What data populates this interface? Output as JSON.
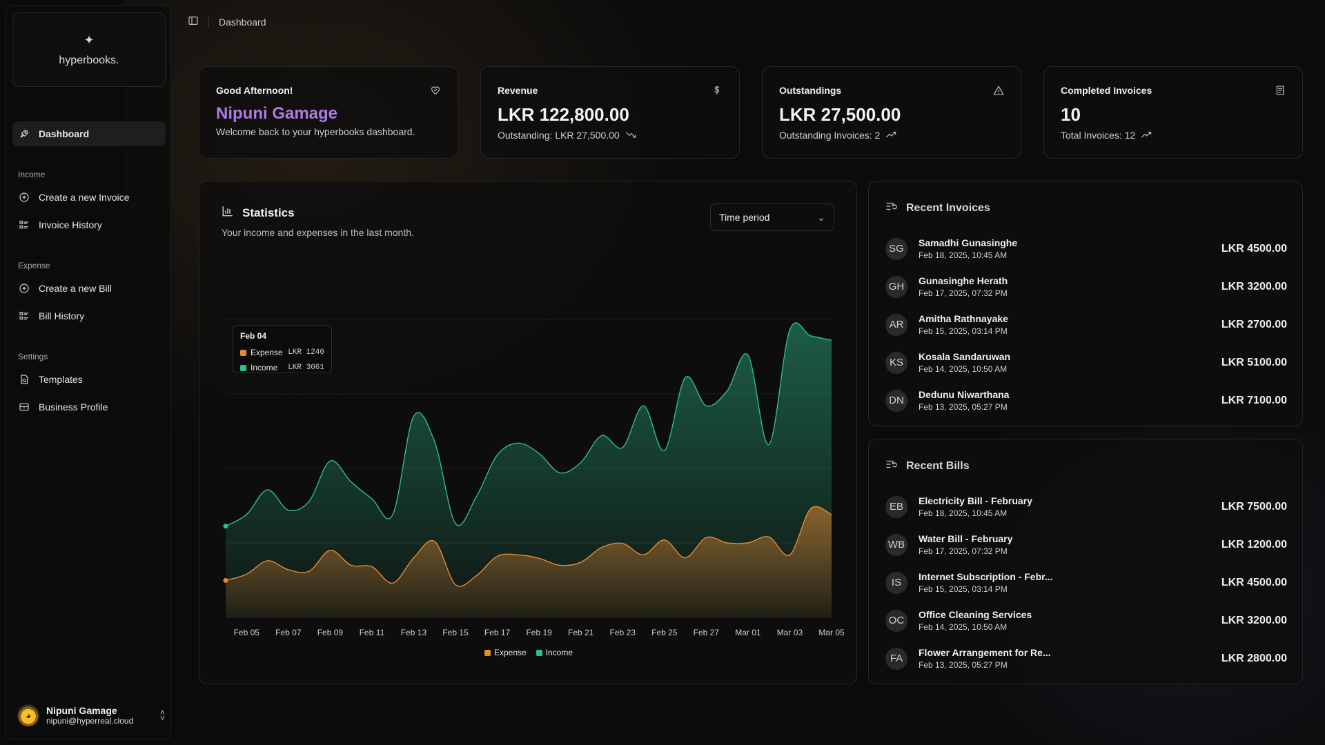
{
  "brand": {
    "name": "hyperbooks."
  },
  "breadcrumb": {
    "current": "Dashboard"
  },
  "sidebar": {
    "dashboard": "Dashboard",
    "income_label": "Income",
    "create_invoice": "Create a new Invoice",
    "invoice_history": "Invoice History",
    "expense_label": "Expense",
    "create_bill": "Create a new Bill",
    "bill_history": "Bill History",
    "settings_label": "Settings",
    "templates": "Templates",
    "business_profile": "Business Profile"
  },
  "user": {
    "name": "Nipuni Gamage",
    "email": "nipuni@hyperreal.cloud"
  },
  "cards": {
    "greeting": {
      "title": "Good Afternoon!",
      "name": "Nipuni Gamage",
      "sub": "Welcome back to your hyperbooks dashboard."
    },
    "revenue": {
      "title": "Revenue",
      "value": "LKR 122,800.00",
      "sub": "Outstanding: LKR 27,500.00"
    },
    "outstandings": {
      "title": "Outstandings",
      "value": "LKR 27,500.00",
      "sub": "Outstanding Invoices:  2"
    },
    "completed": {
      "title": "Completed Invoices",
      "value": "10",
      "sub": "Total Invoices:  12"
    }
  },
  "statistics": {
    "title": "Statistics",
    "subtitle": "Your income and expenses in the last month.",
    "select_value": "Time period",
    "tooltip": {
      "date": "Feb 04",
      "expense_label": "Expense",
      "expense_value": "LKR 1240",
      "income_label": "Income",
      "income_value": "LKR 3061"
    }
  },
  "chart_data": {
    "type": "area",
    "x": [
      "Feb 04",
      "Feb 05",
      "Feb 06",
      "Feb 07",
      "Feb 08",
      "Feb 09",
      "Feb 10",
      "Feb 11",
      "Feb 12",
      "Feb 13",
      "Feb 14",
      "Feb 15",
      "Feb 16",
      "Feb 17",
      "Feb 18",
      "Feb 19",
      "Feb 20",
      "Feb 21",
      "Feb 22",
      "Feb 23",
      "Feb 24",
      "Feb 25",
      "Feb 26",
      "Feb 27",
      "Feb 28",
      "Mar 01",
      "Mar 02",
      "Mar 03",
      "Mar 04",
      "Mar 05"
    ],
    "tick_labels": [
      "Feb 05",
      "Feb 07",
      "Feb 09",
      "Feb 11",
      "Feb 13",
      "Feb 15",
      "Feb 17",
      "Feb 19",
      "Feb 21",
      "Feb 23",
      "Feb 25",
      "Feb 27",
      "Mar 01",
      "Mar 03",
      "Mar 05"
    ],
    "series": [
      {
        "name": "Income",
        "color": "#2fbf8a",
        "values": [
          3061,
          3450,
          4280,
          3600,
          3900,
          5250,
          4550,
          3980,
          3450,
          6750,
          5900,
          3150,
          4050,
          5450,
          5850,
          5500,
          4850,
          5200,
          6100,
          5700,
          7100,
          5600,
          8050,
          7100,
          7600,
          8800,
          5800,
          9650,
          9450,
          9300
        ]
      },
      {
        "name": "Expense",
        "color": "#e88a32",
        "values": [
          1240,
          1450,
          1900,
          1600,
          1550,
          2250,
          1750,
          1700,
          1150,
          2000,
          2550,
          1100,
          1400,
          2050,
          2100,
          1980,
          1750,
          1850,
          2350,
          2480,
          2100,
          2600,
          2000,
          2680,
          2500,
          2500,
          2700,
          2100,
          3650,
          3450
        ]
      }
    ],
    "ylim": [
      0,
      10000
    ],
    "legend": [
      "Expense",
      "Income"
    ]
  },
  "recent_invoices": {
    "title": "Recent Invoices",
    "items": [
      {
        "initials": "SG",
        "name": "Samadhi Gunasinghe",
        "date": "Feb 18, 2025, 10:45 AM",
        "amount": "LKR 4500.00"
      },
      {
        "initials": "GH",
        "name": "Gunasinghe Herath",
        "date": "Feb 17, 2025, 07:32 PM",
        "amount": "LKR 3200.00"
      },
      {
        "initials": "AR",
        "name": "Amitha Rathnayake",
        "date": "Feb 15, 2025, 03:14 PM",
        "amount": "LKR 2700.00"
      },
      {
        "initials": "KS",
        "name": "Kosala Sandaruwan",
        "date": "Feb 14, 2025, 10:50 AM",
        "amount": "LKR 5100.00"
      },
      {
        "initials": "DN",
        "name": "Dedunu Niwarthana",
        "date": "Feb 13, 2025, 05:27 PM",
        "amount": "LKR 7100.00"
      }
    ]
  },
  "recent_bills": {
    "title": "Recent Bills",
    "items": [
      {
        "initials": "EB",
        "name": "Electricity Bill - February",
        "date": "Feb 18, 2025, 10:45 AM",
        "amount": "LKR 7500.00"
      },
      {
        "initials": "WB",
        "name": "Water Bill - February",
        "date": "Feb 17, 2025, 07:32 PM",
        "amount": "LKR 1200.00"
      },
      {
        "initials": "IS",
        "name": "Internet Subscription - Febr...",
        "date": "Feb 15, 2025, 03:14 PM",
        "amount": "LKR 4500.00"
      },
      {
        "initials": "OC",
        "name": "Office Cleaning Services",
        "date": "Feb 14, 2025, 10:50 AM",
        "amount": "LKR 3200.00"
      },
      {
        "initials": "FA",
        "name": "Flower Arrangement for Re...",
        "date": "Feb 13, 2025, 05:27 PM",
        "amount": "LKR 2800.00"
      }
    ]
  }
}
